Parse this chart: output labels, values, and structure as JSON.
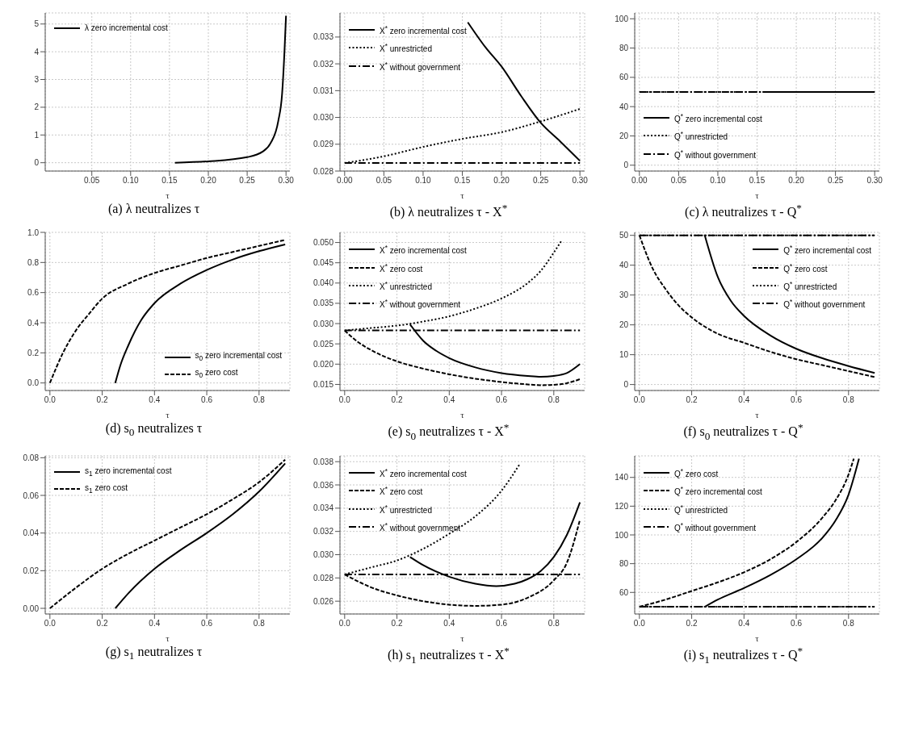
{
  "chart_data": [
    {
      "type": "line",
      "title": "(a) λ neutralizes τ",
      "xlabel": "τ",
      "xlim": [
        -0.01,
        0.305
      ],
      "xticks": [
        {
          "value": 0.05,
          "label": "0.05"
        },
        {
          "value": 0.1,
          "label": "0.10"
        },
        {
          "value": 0.15,
          "label": "0.15"
        },
        {
          "value": 0.2,
          "label": "0.20"
        },
        {
          "value": 0.25,
          "label": "0.25"
        },
        {
          "value": 0.3,
          "label": "0.30"
        }
      ],
      "ylim": [
        -0.3,
        5.4
      ],
      "yticks": [
        0,
        1,
        2,
        3,
        4,
        5
      ],
      "grid": true,
      "legend": "top left",
      "series": [
        {
          "name": "λ zero incremental cost",
          "color": "#000000",
          "line_style": "solid",
          "x": [
            0.157,
            0.2,
            0.25,
            0.27,
            0.28,
            0.29,
            0.295,
            0.298,
            0.3
          ],
          "values": [
            0,
            0.05,
            0.2,
            0.4,
            0.7,
            1.5,
            2.5,
            4,
            5.3
          ]
        }
      ]
    },
    {
      "type": "line",
      "title": "(b) λ neutralizes τ - X$^{*}$",
      "xlabel": "τ",
      "xlim": [
        -0.006,
        0.306
      ],
      "xticks": [
        {
          "value": 0,
          "label": "0.00"
        },
        {
          "value": 0.05,
          "label": "0.05"
        },
        {
          "value": 0.1,
          "label": "0.10"
        },
        {
          "value": 0.15,
          "label": "0.15"
        },
        {
          "value": 0.2,
          "label": "0.20"
        },
        {
          "value": 0.25,
          "label": "0.25"
        },
        {
          "value": 0.3,
          "label": "0.30"
        }
      ],
      "ylim": [
        0.028,
        0.0339
      ],
      "yticks": [
        0.028,
        0.029,
        {
          "value": 0.03,
          "label": "0.030"
        },
        0.031,
        0.032,
        0.033
      ],
      "grid": true,
      "legend": "top left",
      "series": [
        {
          "name": "X$^{*}$ zero incremental cost",
          "color": "#000000",
          "line_style": "solid",
          "x": [
            0.157,
            0.18,
            0.2,
            0.225,
            0.25,
            0.275,
            0.3
          ],
          "values": [
            0.03355,
            0.0326,
            0.0319,
            0.0308,
            0.0298,
            0.0291,
            0.02838
          ]
        },
        {
          "name": "X$^{*}$ unrestricted",
          "color": "#000000",
          "line_style": "dotted",
          "x": [
            0,
            0.05,
            0.1,
            0.15,
            0.2,
            0.25,
            0.3
          ],
          "values": [
            0.0283,
            0.02855,
            0.0289,
            0.0292,
            0.02945,
            0.02985,
            0.03032
          ]
        },
        {
          "name": "X$^{*}$ without government",
          "color": "#000000",
          "line_style": "dashdot",
          "x": [
            0,
            0.3
          ],
          "values": [
            0.0283,
            0.0283
          ]
        }
      ]
    },
    {
      "type": "line",
      "title": "(c) λ neutralizes τ - Q$^{*}$",
      "xlabel": "τ",
      "xlim": [
        -0.006,
        0.306
      ],
      "xticks": [
        {
          "value": 0,
          "label": "0.00"
        },
        {
          "value": 0.05,
          "label": "0.05"
        },
        {
          "value": 0.1,
          "label": "0.10"
        },
        {
          "value": 0.15,
          "label": "0.15"
        },
        {
          "value": 0.2,
          "label": "0.20"
        },
        {
          "value": 0.25,
          "label": "0.25"
        },
        {
          "value": 0.3,
          "label": "0.30"
        }
      ],
      "ylim": [
        -4,
        104
      ],
      "yticks": [
        0,
        20,
        40,
        60,
        80,
        100
      ],
      "grid": true,
      "legend": "bottom left",
      "series": [
        {
          "name": "Q$^{*}$ zero incremental cost",
          "color": "#000000",
          "line_style": "solid",
          "x": [
            0.157,
            0.3
          ],
          "values": [
            50,
            50
          ]
        },
        {
          "name": "Q$^{*}$ unrestricted",
          "color": "#000000",
          "line_style": "dotted",
          "x": [
            0,
            0.3
          ],
          "values": [
            50,
            50
          ]
        },
        {
          "name": "Q$^{*}$ without government",
          "color": "#000000",
          "line_style": "dashdot",
          "x": [
            0,
            0.3
          ],
          "values": [
            50,
            50
          ]
        }
      ]
    },
    {
      "type": "line",
      "title": "(d) s$_{0}$ neutralizes τ",
      "xlabel": "τ",
      "xlim": [
        -0.018,
        0.918
      ],
      "xticks": [
        {
          "value": 0,
          "label": "0.0"
        },
        0.2,
        0.4,
        0.6,
        0.8
      ],
      "ylim": [
        -0.05,
        1
      ],
      "yticks": [
        {
          "value": 0,
          "label": "0.0"
        },
        0.2,
        0.4,
        0.6,
        0.8,
        {
          "value": 1,
          "label": "1.0"
        }
      ],
      "grid": true,
      "legend": "bottom right",
      "series": [
        {
          "name": "s$_{0}$ zero incremental cost",
          "color": "#000000",
          "line_style": "solid",
          "x": [
            0.25,
            0.27,
            0.3,
            0.35,
            0.4,
            0.5,
            0.6,
            0.7,
            0.8,
            0.9
          ],
          "values": [
            0,
            0.12,
            0.25,
            0.42,
            0.53,
            0.66,
            0.75,
            0.82,
            0.875,
            0.92
          ]
        },
        {
          "name": "s$_{0}$ zero cost",
          "color": "#000000",
          "line_style": "dashed",
          "x": [
            0,
            0.05,
            0.1,
            0.15,
            0.2,
            0.3,
            0.4,
            0.5,
            0.6,
            0.7,
            0.8,
            0.9
          ],
          "values": [
            0,
            0.2,
            0.35,
            0.46,
            0.56,
            0.66,
            0.73,
            0.78,
            0.83,
            0.87,
            0.91,
            0.95
          ]
        }
      ]
    },
    {
      "type": "line",
      "title": "(e) s$_{0}$ neutralizes τ - X$^{*}$",
      "xlabel": "τ",
      "xlim": [
        -0.018,
        0.918
      ],
      "xticks": [
        {
          "value": 0,
          "label": "0.0"
        },
        0.2,
        0.4,
        0.6,
        0.8
      ],
      "ylim": [
        0.0135,
        0.0525
      ],
      "yticks": [
        0.015,
        {
          "value": 0.02,
          "label": "0.020"
        },
        0.025,
        {
          "value": 0.03,
          "label": "0.030"
        },
        0.035,
        {
          "value": 0.04,
          "label": "0.040"
        },
        0.045,
        {
          "value": 0.05,
          "label": "0.050"
        }
      ],
      "grid": true,
      "legend": "top left",
      "series": [
        {
          "name": "X$^{*}$ zero incremental cost",
          "color": "#000000",
          "line_style": "solid",
          "x": [
            0.25,
            0.3,
            0.35,
            0.4,
            0.5,
            0.6,
            0.7,
            0.75,
            0.8,
            0.85,
            0.9
          ],
          "values": [
            0.0298,
            0.0258,
            0.0233,
            0.0215,
            0.0192,
            0.0178,
            0.0171,
            0.0169,
            0.0171,
            0.0178,
            0.02
          ]
        },
        {
          "name": "X$^{*}$ zero cost",
          "color": "#000000",
          "line_style": "dashed",
          "x": [
            0,
            0.05,
            0.1,
            0.2,
            0.3,
            0.4,
            0.5,
            0.6,
            0.7,
            0.75,
            0.8,
            0.85,
            0.9
          ],
          "values": [
            0.0283,
            0.0255,
            0.0235,
            0.0207,
            0.0189,
            0.0175,
            0.0164,
            0.0156,
            0.015,
            0.0148,
            0.0149,
            0.0153,
            0.0163
          ]
        },
        {
          "name": "X$^{*}$ unrestricted",
          "color": "#000000",
          "line_style": "dotted",
          "x": [
            0,
            0.1,
            0.2,
            0.3,
            0.4,
            0.5,
            0.6,
            0.7,
            0.75,
            0.8,
            0.83
          ],
          "values": [
            0.0283,
            0.0289,
            0.0295,
            0.0305,
            0.0318,
            0.0337,
            0.0362,
            0.04,
            0.043,
            0.0475,
            0.0505
          ]
        },
        {
          "name": "X$^{*}$ without government",
          "color": "#000000",
          "line_style": "dashdot",
          "x": [
            0,
            0.9
          ],
          "values": [
            0.0283,
            0.0283
          ]
        }
      ]
    },
    {
      "type": "line",
      "title": "(f) s$_{0}$ neutralizes τ - Q$^{*}$",
      "xlabel": "τ",
      "xlim": [
        -0.018,
        0.918
      ],
      "xticks": [
        {
          "value": 0,
          "label": "0.0"
        },
        0.2,
        0.4,
        0.6,
        0.8
      ],
      "ylim": [
        -2,
        51
      ],
      "yticks": [
        0,
        10,
        20,
        30,
        40,
        50
      ],
      "grid": true,
      "legend": "top right",
      "series": [
        {
          "name": "Q$^{*}$ zero incremental cost",
          "color": "#000000",
          "line_style": "solid",
          "x": [
            0.25,
            0.3,
            0.35,
            0.4,
            0.5,
            0.6,
            0.7,
            0.8,
            0.9
          ],
          "values": [
            50,
            36,
            28,
            23,
            16.5,
            12,
            8.8,
            6.2,
            3.9
          ]
        },
        {
          "name": "Q$^{*}$ zero cost",
          "color": "#000000",
          "line_style": "dashed",
          "x": [
            0,
            0.05,
            0.1,
            0.15,
            0.2,
            0.3,
            0.4,
            0.5,
            0.6,
            0.7,
            0.8,
            0.9
          ],
          "values": [
            50,
            39,
            32,
            26.5,
            22.5,
            17,
            14,
            11,
            8.5,
            6.5,
            4.5,
            2.5
          ]
        },
        {
          "name": "Q$^{*}$ unrestricted",
          "color": "#000000",
          "line_style": "dotted",
          "x": [
            0,
            0.9
          ],
          "values": [
            50,
            50
          ]
        },
        {
          "name": "Q$^{*}$ without government",
          "color": "#000000",
          "line_style": "dashdot",
          "x": [
            0,
            0.9
          ],
          "values": [
            50,
            50
          ]
        }
      ]
    },
    {
      "type": "line",
      "title": "(g) s$_{1}$ neutralizes τ",
      "xlabel": "τ",
      "xlim": [
        -0.018,
        0.918
      ],
      "xticks": [
        {
          "value": 0,
          "label": "0.0"
        },
        0.2,
        0.4,
        0.6,
        0.8
      ],
      "ylim": [
        -0.003,
        0.081
      ],
      "yticks": [
        {
          "value": 0,
          "label": "0.00"
        },
        0.02,
        0.04,
        0.06,
        0.08
      ],
      "grid": true,
      "legend": "top left",
      "series": [
        {
          "name": "s$_{1}$ zero incremental cost",
          "color": "#000000",
          "line_style": "solid",
          "x": [
            0.25,
            0.3,
            0.4,
            0.5,
            0.6,
            0.7,
            0.8,
            0.9
          ],
          "values": [
            0,
            0.008,
            0.021,
            0.031,
            0.04,
            0.05,
            0.062,
            0.077
          ]
        },
        {
          "name": "s$_{1}$ zero cost",
          "color": "#000000",
          "line_style": "dashed",
          "x": [
            0,
            0.1,
            0.2,
            0.3,
            0.4,
            0.5,
            0.6,
            0.7,
            0.8,
            0.9
          ],
          "values": [
            0,
            0.011,
            0.021,
            0.029,
            0.036,
            0.043,
            0.05,
            0.058,
            0.067,
            0.079
          ]
        }
      ]
    },
    {
      "type": "line",
      "title": "(h) s$_{1}$ neutralizes τ - X$^{*}$",
      "xlabel": "τ",
      "xlim": [
        -0.018,
        0.918
      ],
      "xticks": [
        {
          "value": 0,
          "label": "0.0"
        },
        0.2,
        0.4,
        0.6,
        0.8
      ],
      "ylim": [
        0.0249,
        0.0385
      ],
      "yticks": [
        0.026,
        0.028,
        {
          "value": 0.03,
          "label": "0.030"
        },
        0.032,
        0.034,
        0.036,
        0.038
      ],
      "grid": true,
      "legend": "top left",
      "series": [
        {
          "name": "X$^{*}$ zero incremental cost",
          "color": "#000000",
          "line_style": "solid",
          "x": [
            0.25,
            0.3,
            0.4,
            0.5,
            0.58,
            0.65,
            0.7,
            0.75,
            0.8,
            0.85,
            0.9
          ],
          "values": [
            0.0298,
            0.0291,
            0.0281,
            0.0275,
            0.0273,
            0.0275,
            0.0279,
            0.0286,
            0.0298,
            0.0317,
            0.0345
          ]
        },
        {
          "name": "X$^{*}$ zero cost",
          "color": "#000000",
          "line_style": "dashed",
          "x": [
            0,
            0.1,
            0.2,
            0.3,
            0.4,
            0.5,
            0.6,
            0.7,
            0.8,
            0.85,
            0.9
          ],
          "values": [
            0.0283,
            0.0272,
            0.0265,
            0.026,
            0.0257,
            0.0256,
            0.0257,
            0.0263,
            0.0278,
            0.0293,
            0.033
          ]
        },
        {
          "name": "X$^{*}$ unrestricted",
          "color": "#000000",
          "line_style": "dotted",
          "x": [
            0,
            0.1,
            0.2,
            0.3,
            0.4,
            0.5,
            0.6,
            0.67
          ],
          "values": [
            0.0283,
            0.0289,
            0.0295,
            0.0305,
            0.0318,
            0.0333,
            0.0355,
            0.0378
          ]
        },
        {
          "name": "X$^{*}$ without government",
          "color": "#000000",
          "line_style": "dashdot",
          "x": [
            0,
            0.9
          ],
          "values": [
            0.0283,
            0.0283
          ]
        }
      ]
    },
    {
      "type": "line",
      "title": "(i) s$_{1}$ neutralizes τ - Q$^{*}$",
      "xlabel": "τ",
      "xlim": [
        -0.018,
        0.918
      ],
      "xticks": [
        {
          "value": 0,
          "label": "0.0"
        },
        0.2,
        0.4,
        0.6,
        0.8
      ],
      "ylim": [
        45,
        155
      ],
      "yticks": [
        60,
        80,
        100,
        120,
        140
      ],
      "grid": true,
      "legend": "top left",
      "series": [
        {
          "name": "Q$^{*}$ zero cost",
          "color": "#000000",
          "line_style": "solid",
          "x": [
            0.25,
            0.3,
            0.4,
            0.5,
            0.6,
            0.7,
            0.75,
            0.8,
            0.84
          ],
          "values": [
            50,
            55,
            63,
            72,
            83,
            98,
            110,
            128,
            153
          ]
        },
        {
          "name": "Q$^{*}$ zero incremental cost",
          "color": "#000000",
          "line_style": "dashed",
          "x": [
            0,
            0.1,
            0.2,
            0.3,
            0.4,
            0.5,
            0.6,
            0.7,
            0.75,
            0.8,
            0.82
          ],
          "values": [
            50,
            55,
            61,
            67,
            74,
            83,
            95,
            112,
            124,
            142,
            153
          ]
        },
        {
          "name": "Q$^{*}$ unrestricted",
          "color": "#000000",
          "line_style": "dotted",
          "x": [
            0,
            0.9
          ],
          "values": [
            50,
            50
          ]
        },
        {
          "name": "Q$^{*}$ without government",
          "color": "#000000",
          "line_style": "dashdot",
          "x": [
            0,
            0.9
          ],
          "values": [
            50,
            50
          ]
        }
      ]
    }
  ]
}
